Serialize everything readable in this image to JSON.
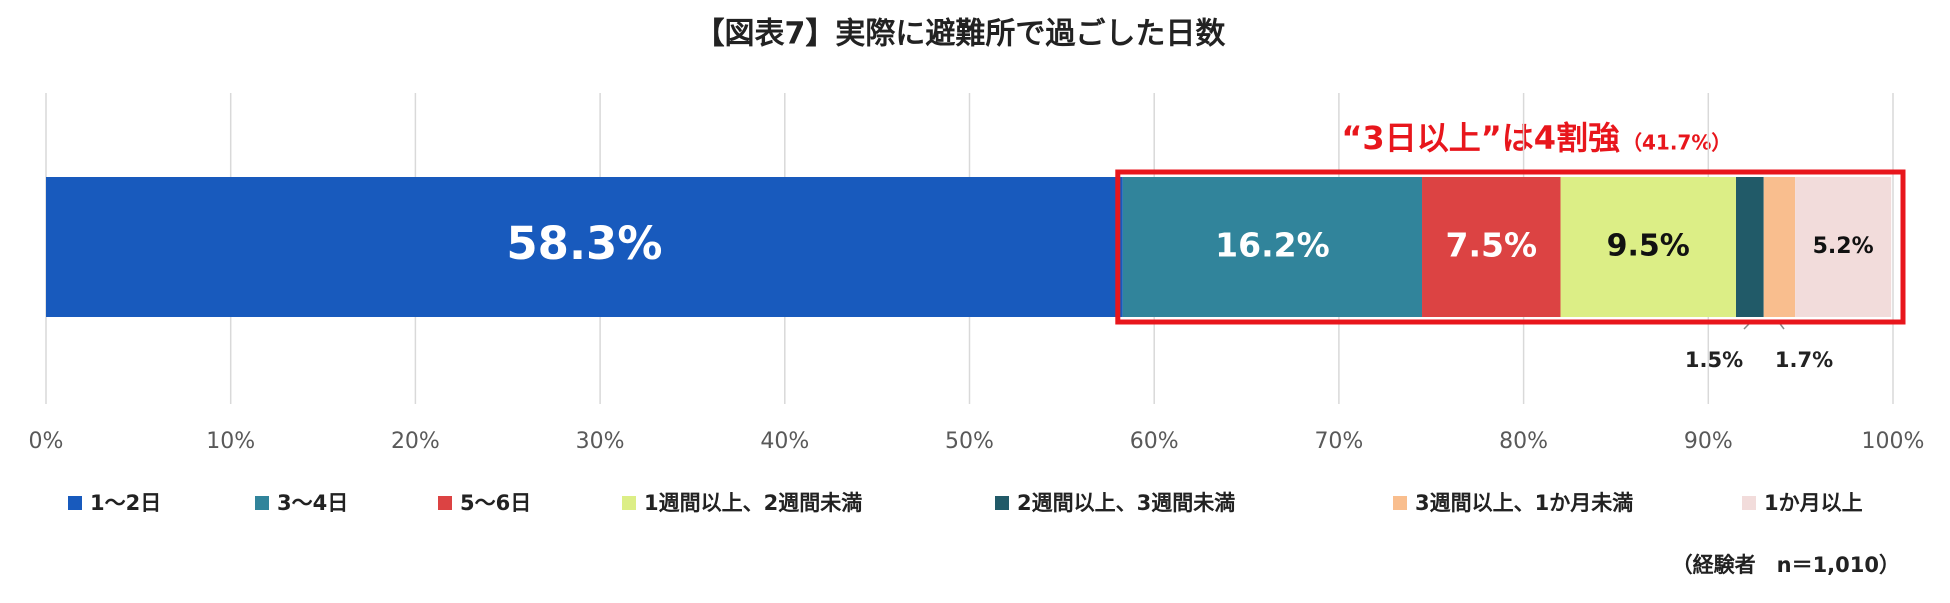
{
  "chart_data": {
    "type": "stacked_bar_horizontal",
    "title": "【図表7】実際に避難所で過ごした日数",
    "categories": [
      null
    ],
    "series": [
      {
        "name": "1～2日",
        "color": "#185abd",
        "values": [
          58.3
        ],
        "value_labels": [
          "58.3%"
        ]
      },
      {
        "name": "3～4日",
        "color": "#31849b",
        "values": [
          16.2
        ],
        "value_labels": [
          "16.2%"
        ]
      },
      {
        "name": "5～6日",
        "color": "#dc4343",
        "values": [
          7.5
        ],
        "value_labels": [
          "7.5%"
        ]
      },
      {
        "name": "1週間以上、2週間未満",
        "color": "#dcee86",
        "values": [
          9.5
        ],
        "value_labels": [
          "9.5%"
        ]
      },
      {
        "name": "2週間以上、3週間未満",
        "color": "#215a68",
        "values": [
          1.5
        ],
        "value_labels": [
          "1.5%"
        ]
      },
      {
        "name": "3週間以上、1か月未満",
        "color": "#f9be8e",
        "values": [
          1.7
        ],
        "value_labels": [
          "1.7%"
        ]
      },
      {
        "name": "1か月以上",
        "color": "#f2dcdb",
        "values": [
          5.2
        ],
        "value_labels": [
          "5.2%"
        ]
      }
    ],
    "xlim": [
      0,
      100
    ],
    "xticks": [
      {
        "value": 0,
        "label": "0%"
      },
      {
        "value": 10,
        "label": "10%"
      },
      {
        "value": 20,
        "label": "20%"
      },
      {
        "value": 30,
        "label": "30%"
      },
      {
        "value": 40,
        "label": "40%"
      },
      {
        "value": 50,
        "label": "50%"
      },
      {
        "value": 60,
        "label": "60%"
      },
      {
        "value": 70,
        "label": "70%"
      },
      {
        "value": 80,
        "label": "80%"
      },
      {
        "value": 90,
        "label": "90%"
      },
      {
        "value": 100,
        "label": "100%"
      }
    ],
    "grid": true,
    "legend": "bottom",
    "annotations": [
      "“3日以上”は4割強",
      "（41.7%）"
    ],
    "note": "（経験者　n＝1,010）"
  }
}
